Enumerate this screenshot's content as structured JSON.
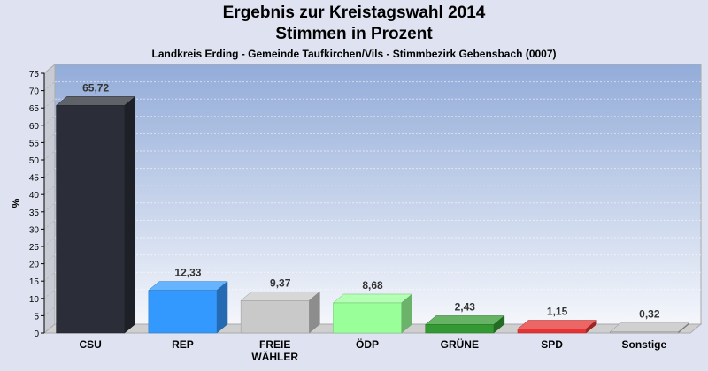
{
  "chart_data": {
    "type": "bar",
    "title": "Ergebnis zur Kreistagswahl 2014",
    "subtitle": "Stimmen in Prozent",
    "caption": "Landkreis Erding - Gemeinde Taufkirchen/Vils - Stimmbezirk Gebensbach (0007)",
    "ylabel": "%",
    "ylim": [
      0,
      75
    ],
    "yticks": [
      0,
      5,
      10,
      15,
      20,
      25,
      30,
      35,
      40,
      45,
      50,
      55,
      60,
      65,
      70,
      75
    ],
    "categories": [
      [
        "CSU"
      ],
      [
        "REP"
      ],
      [
        "FREIE",
        "WÄHLER"
      ],
      [
        "ÖDP"
      ],
      [
        "GRÜNE"
      ],
      [
        "SPD"
      ],
      [
        "Sonstige"
      ]
    ],
    "values": [
      65.72,
      12.33,
      9.37,
      8.68,
      2.43,
      1.15,
      0.32
    ],
    "value_labels": [
      "65,72",
      "12,33",
      "9,37",
      "8,68",
      "2,43",
      "1,15",
      "0,32"
    ],
    "colors": [
      "#2b2e38",
      "#3399ff",
      "#c9c9c9",
      "#99ff99",
      "#339933",
      "#e63333",
      "#c0c0c0"
    ]
  }
}
